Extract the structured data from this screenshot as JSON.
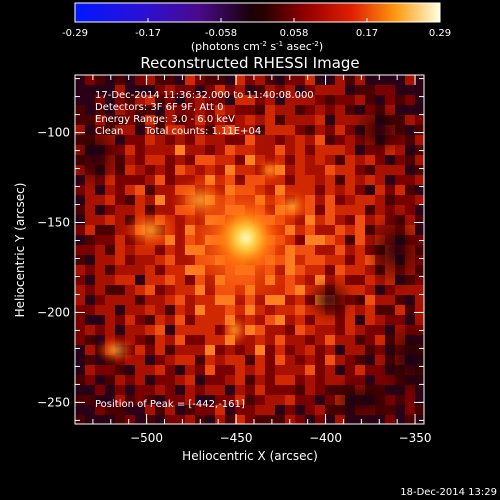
{
  "colorbar": {
    "ticks": [
      "-0.29",
      "-0.17",
      "-0.058",
      "0.058",
      "0.17",
      "0.29"
    ],
    "units_text": "(photons cm",
    "units_exp1": "-2",
    "units_mid": " s",
    "units_exp2": "-1",
    "units_mid2": " asec",
    "units_exp3": "-2",
    "units_close": ")"
  },
  "title": "Reconstructed RHESSI Image",
  "info": {
    "line1": "17-Dec-2014 11:36:32.000 to 11:40:08.000",
    "line2": "Detectors: 3F 6F 9F, Att 0",
    "line3": "Energy Range: 3.0 - 6.0 keV",
    "line4a": "Clean",
    "line4b": "Total counts: 1.11E+04",
    "peak": "Position of Peak = [-442,-161]"
  },
  "axes": {
    "xlabel": "Heliocentric X (arcsec)",
    "ylabel": "Heliocentric Y (arcsec)",
    "xticks": [
      "-500",
      "-450",
      "-400",
      "-350"
    ],
    "yticks": [
      "-100",
      "-150",
      "-200",
      "-250"
    ],
    "xlim": [
      -540,
      -345
    ],
    "ylim": [
      -262,
      -68
    ]
  },
  "footer_timestamp": "18-Dec-2014 13:29",
  "colors": {
    "background": "#000000",
    "frame": "#ffffff"
  }
}
